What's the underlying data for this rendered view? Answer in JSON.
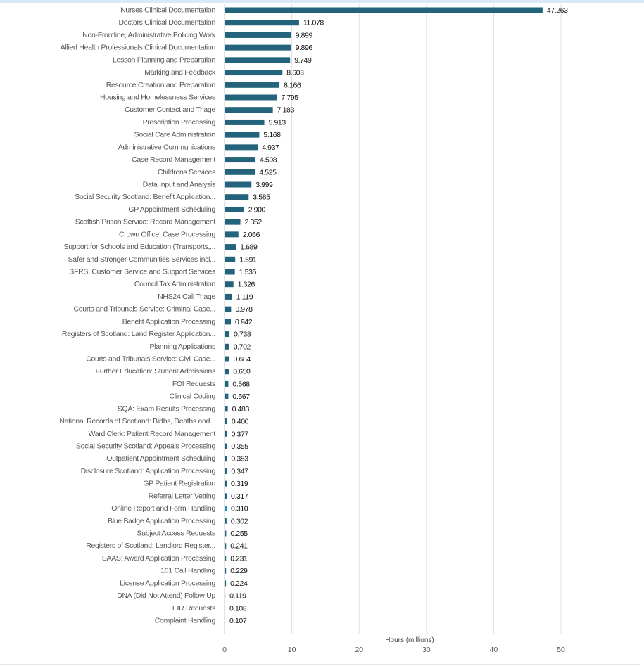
{
  "chart_data": {
    "type": "bar",
    "orientation": "horizontal",
    "xlabel": "Hours (millions)",
    "xlim": [
      0,
      50
    ],
    "xticks": [
      0,
      10,
      20,
      30,
      40,
      50
    ],
    "grid": "vertical",
    "bar_color": "#24637c",
    "highlight_color": "#1a8fc9",
    "categories": [
      "Nurses Clinical Documentation",
      "Doctors Clinical Documentation",
      "Non-Frontline, Administrative Policing Work",
      "Allied Health Professionals Clinical Documentation",
      "Lesson Planning and Preparation",
      "Marking and Feedback",
      "Resource Creation and Preparation",
      "Housing and Homelessness Services",
      "Customer Contact and Triage",
      "Prescription Processing",
      "Social Care Administration",
      "Administrative Communications",
      "Case Record Management",
      "Childrens Services",
      "Data Input and Analysis",
      "Social Security Scotland: Benefit Application...",
      "GP Appointment Scheduling",
      "Scottish Prison Service: Record Management",
      "Crown Office: Case Processing",
      "Support for Schools and Education (Transports,...",
      "Safer and Stronger Communities Services incl...",
      "SFRS: Customer Service and Support Services",
      "Council Tax Administration",
      "NHS24 Call Triage",
      "Courts and Tribunals Service: Criminal Case...",
      "Benefit Application Processing",
      "Registers of Scotland: Land Register Application...",
      "Planning Applications",
      "Courts and Tribunals Service: Civil Case...",
      "Further Education: Student Admissions",
      "FOI Requests",
      "Clinical Coding",
      "SQA: Exam Results Processing",
      "National Records of Scotland: Births, Deaths and...",
      "Ward Clerk: Patient Record Management",
      "Social Security Scotland: Appeals Processing",
      "Outpatient Appointment Scheduling",
      "Disclosure Scotland: Application Processing",
      "GP Patient Registration",
      "Referral Letter Vetting",
      "Online Report and Form Handling",
      "Blue Badge Application Processing",
      "Subject Access Requests",
      "Registers of Scotland: Landlord Register...",
      "SAAS: Award Application Processing",
      "101 Call Handling",
      "License Application Processing",
      "DNA (Did Not Attend) Follow Up",
      "EIR Requests",
      "Complaint Handling"
    ],
    "values": [
      47.263,
      11.078,
      9.899,
      9.896,
      9.749,
      8.603,
      8.166,
      7.795,
      7.183,
      5.913,
      5.168,
      4.937,
      4.598,
      4.525,
      3.999,
      3.585,
      2.9,
      2.352,
      2.066,
      1.689,
      1.591,
      1.535,
      1.326,
      1.119,
      0.978,
      0.942,
      0.738,
      0.702,
      0.684,
      0.65,
      0.568,
      0.567,
      0.483,
      0.4,
      0.377,
      0.355,
      0.353,
      0.347,
      0.319,
      0.317,
      0.31,
      0.302,
      0.255,
      0.241,
      0.231,
      0.229,
      0.224,
      0.119,
      0.108,
      0.107
    ],
    "value_labels": [
      "47.263",
      "11.078",
      "9.899",
      "9.896",
      "9.749",
      "8.603",
      "8.166",
      "7.795",
      "7.183",
      "5.913",
      "5.168",
      "4.937",
      "4.598",
      "4.525",
      "3.999",
      "3.585",
      "2.900",
      "2.352",
      "2.066",
      "1.689",
      "1.591",
      "1.535",
      "1.326",
      "1.119",
      "0.978",
      "0.942",
      "0.738",
      "0.702",
      "0.684",
      "0.650",
      "0.568",
      "0.567",
      "0.483",
      "0.400",
      "0.377",
      "0.355",
      "0.353",
      "0.347",
      "0.319",
      "0.317",
      "0.310",
      "0.302",
      "0.255",
      "0.241",
      "0.231",
      "0.229",
      "0.224",
      "0.119",
      "0.108",
      "0.107"
    ],
    "highlighted_category": "Online Report and Form Handling"
  }
}
